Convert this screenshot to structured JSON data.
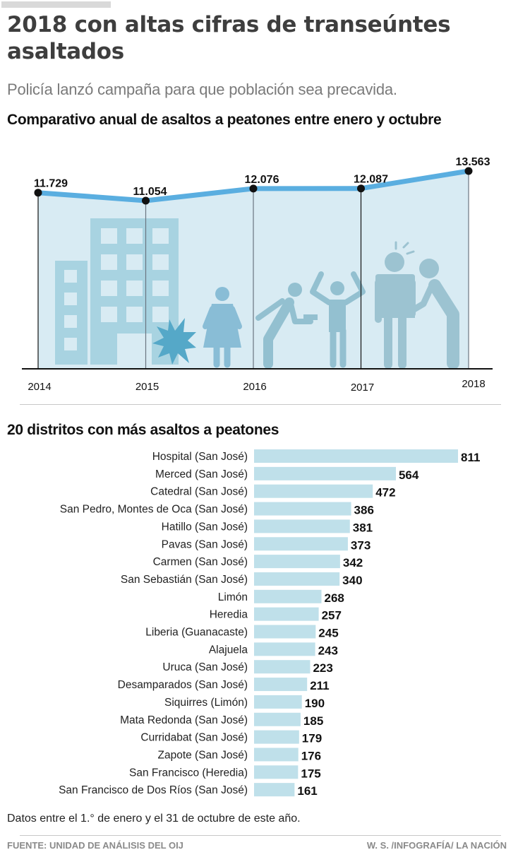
{
  "header": {
    "title": "2018 con altas cifras de transeúntes asaltados",
    "subtitle": "Policía lanzó campaña para que población sea precavida."
  },
  "chart_data": [
    {
      "type": "area",
      "title": "Comparativo anual de asaltos a peatones entre enero y octubre",
      "xlabel": "",
      "ylabel": "",
      "x": [
        "2014",
        "2015",
        "2016",
        "2017",
        "2018"
      ],
      "values": [
        11729,
        11054,
        12076,
        12087,
        13563
      ],
      "data_labels": [
        "11.729",
        "11.054",
        "12.076",
        "12.087",
        "13.563"
      ],
      "grid": false,
      "colors": {
        "line": "#5aaee0",
        "area": "#d8ebf3",
        "marker": "#111111"
      }
    },
    {
      "type": "bar",
      "orientation": "horizontal",
      "title": "20 distritos con más asaltos a peatones",
      "categories": [
        "Hospital (San José)",
        "Merced (San José)",
        "Catedral (San José)",
        "San Pedro, Montes de Oca (San José)",
        "Hatillo (San José)",
        "Pavas (San José)",
        "Carmen (San José)",
        "San Sebastián (San José)",
        "Limón",
        "Heredia",
        "Liberia (Guanacaste)",
        "Alajuela",
        "Uruca (San José)",
        "Desamparados (San José)",
        "Siquirres (Limón)",
        "Mata Redonda (San José)",
        "Curridabat (San José)",
        "Zapote (San José)",
        "San Francisco (Heredia)",
        "San Francisco de Dos Ríos (San José)"
      ],
      "values": [
        811,
        564,
        472,
        386,
        381,
        373,
        342,
        340,
        268,
        257,
        245,
        243,
        223,
        211,
        190,
        185,
        179,
        176,
        175,
        161
      ],
      "xlim": [
        0,
        811
      ],
      "colors": {
        "bar": "#bfe0ea"
      }
    }
  ],
  "footer": {
    "note": "Datos entre el 1.° de enero y el 31 de octubre de este año.",
    "source": "FUENTE: UNIDAD DE ANÁLISIS DEL OIJ",
    "credit": "W. S. /INFOGRAFÍA/ LA NACIÓN"
  }
}
